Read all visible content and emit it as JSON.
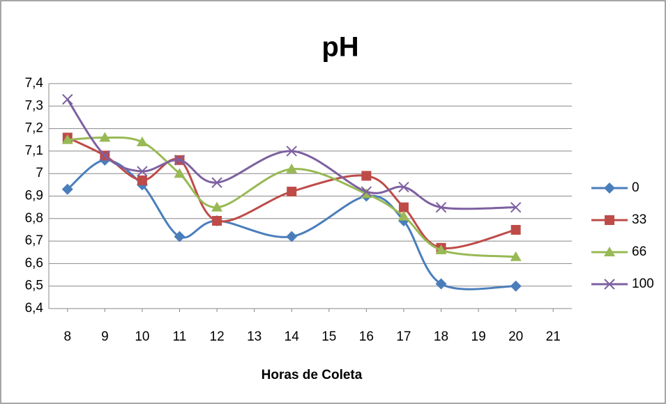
{
  "chart_data": {
    "type": "line",
    "title": "pH",
    "x_label": "Horas de Coleta",
    "x": [
      8,
      9,
      10,
      11,
      12,
      14,
      16,
      17,
      18,
      20
    ],
    "xlim": [
      7.5,
      21.5
    ],
    "xticks": [
      8,
      9,
      10,
      11,
      12,
      13,
      14,
      15,
      16,
      17,
      18,
      19,
      20,
      21
    ],
    "ylim": [
      6.4,
      7.4
    ],
    "yticks": [
      {
        "value": 6.4,
        "label": "6,4"
      },
      {
        "value": 6.5,
        "label": "6,5"
      },
      {
        "value": 6.6,
        "label": "6,6"
      },
      {
        "value": 6.7,
        "label": "6,7"
      },
      {
        "value": 6.8,
        "label": "6,8"
      },
      {
        "value": 6.9,
        "label": "6,9"
      },
      7,
      {
        "value": 7.1,
        "label": "7,1"
      },
      {
        "value": 7.2,
        "label": "7,2"
      },
      {
        "value": 7.3,
        "label": "7,3"
      },
      {
        "value": 7.4,
        "label": "7,4"
      }
    ],
    "grid": true,
    "smooth": true,
    "legend": "right",
    "series": [
      {
        "name": "0",
        "color": "#4a7ebb",
        "marker": "diamond",
        "values": [
          6.93,
          7.06,
          6.95,
          6.72,
          6.79,
          6.72,
          6.9,
          6.79,
          6.51,
          6.5
        ]
      },
      {
        "name": "33",
        "color": "#be4b48",
        "marker": "square",
        "values": [
          7.16,
          7.08,
          6.97,
          7.06,
          6.79,
          6.92,
          6.99,
          6.85,
          6.67,
          6.75
        ]
      },
      {
        "name": "66",
        "color": "#98b954",
        "marker": "triangle",
        "values": [
          7.15,
          7.16,
          7.14,
          7.0,
          6.85,
          7.02,
          6.91,
          6.81,
          6.66,
          6.63
        ]
      },
      {
        "name": "100",
        "color": "#7d60a0",
        "marker": "x",
        "values": [
          7.33,
          7.08,
          7.01,
          7.06,
          6.96,
          7.1,
          6.92,
          6.94,
          6.85,
          6.85
        ]
      }
    ]
  }
}
